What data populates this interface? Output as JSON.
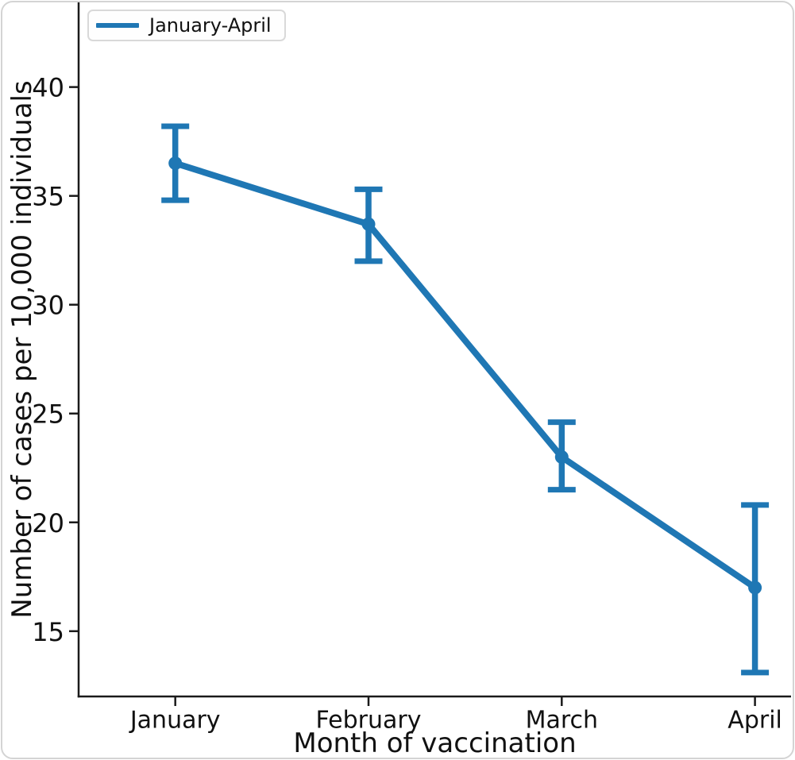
{
  "figure": {
    "background": "#ffffff",
    "border_color": "#d4d4d4"
  },
  "chart_data": {
    "type": "line",
    "title": "",
    "xlabel": "Month of vaccination",
    "ylabel": "Number of cases per 10,000 individuals",
    "categories": [
      "January",
      "February",
      "March",
      "April"
    ],
    "series": [
      {
        "name": "January-April",
        "color": "#1f77b4",
        "values": [
          36.5,
          33.7,
          23.0,
          17.0
        ],
        "error_low": [
          34.8,
          32.0,
          21.5,
          13.1
        ],
        "error_high": [
          38.2,
          35.3,
          24.6,
          20.8
        ]
      }
    ],
    "marker": "circle",
    "error_bars": true,
    "grid": false,
    "legend_position": "upper left",
    "yticks": [
      15,
      20,
      25,
      30,
      35,
      40
    ],
    "ylim": [
      12,
      44
    ],
    "axis_color": "#1a1a1a",
    "text_color": "#111111"
  }
}
